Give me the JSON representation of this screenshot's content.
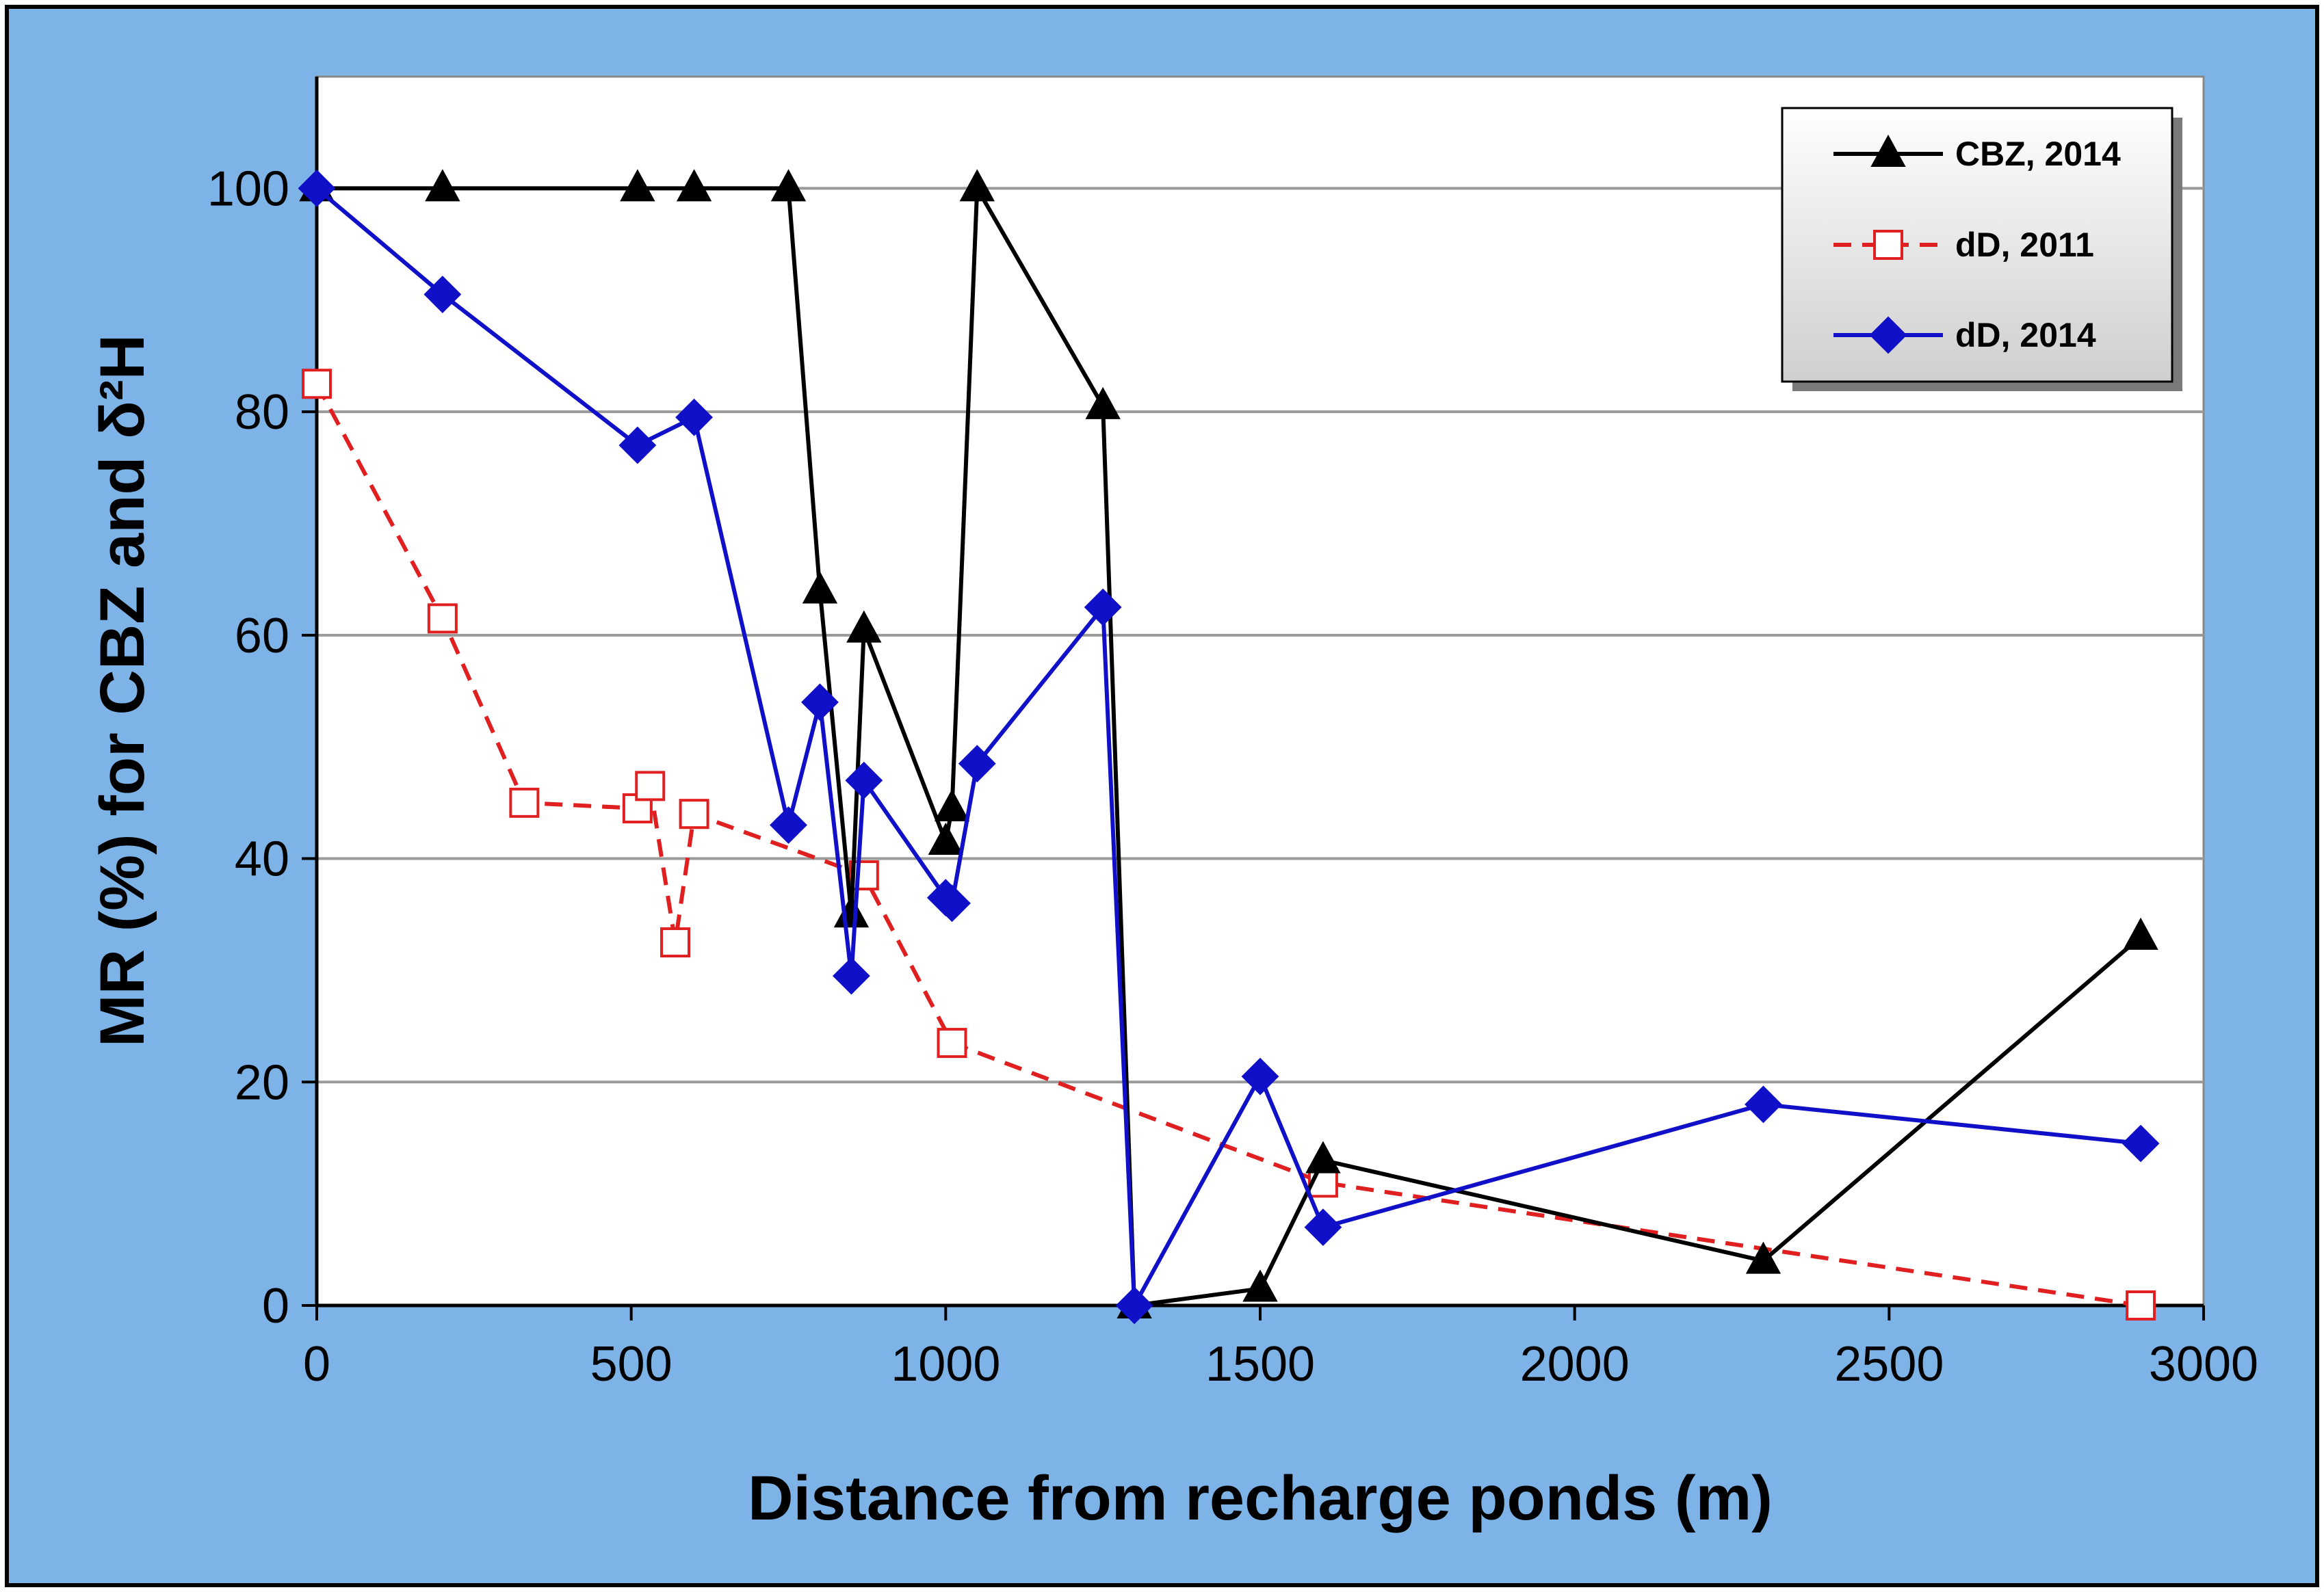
{
  "chart_data": {
    "type": "line",
    "title": "",
    "xlabel": "Distance from recharge ponds (m)",
    "ylabel": "MR (%) for CBZ and δ²H",
    "xlim": [
      0,
      3000
    ],
    "ylim": [
      0,
      110
    ],
    "xticks": [
      0,
      500,
      1000,
      1500,
      2000,
      2500,
      3000
    ],
    "yticks": [
      0,
      20,
      40,
      60,
      80,
      100
    ],
    "grid": "horizontal",
    "legend_position": "top-right",
    "series": [
      {
        "name": "CBZ, 2014",
        "color": "#000000",
        "line_style": "solid",
        "marker": "filled-triangle",
        "points": [
          [
            0,
            100
          ],
          [
            200,
            100
          ],
          [
            510,
            100
          ],
          [
            600,
            100
          ],
          [
            750,
            100
          ],
          [
            800,
            64
          ],
          [
            850,
            35
          ],
          [
            870,
            60.5
          ],
          [
            1000,
            41.5
          ],
          [
            1010,
            44.5
          ],
          [
            1050,
            100
          ],
          [
            1250,
            80.5
          ],
          [
            1300,
            0
          ],
          [
            1500,
            1.5
          ],
          [
            1600,
            13
          ],
          [
            2300,
            4
          ],
          [
            2900,
            33
          ]
        ]
      },
      {
        "name": "dD, 2011",
        "color": "#e02020",
        "line_style": "dashed",
        "marker": "open-square",
        "points": [
          [
            0,
            82.5
          ],
          [
            200,
            61.5
          ],
          [
            330,
            45
          ],
          [
            510,
            44.5
          ],
          [
            530,
            46.5
          ],
          [
            570,
            32.5
          ],
          [
            600,
            44
          ],
          [
            870,
            38.5
          ],
          [
            1010,
            23.5
          ],
          [
            1600,
            11
          ],
          [
            2900,
            0
          ]
        ]
      },
      {
        "name": "dD, 2014",
        "color": "#1010c8",
        "line_style": "solid",
        "marker": "filled-diamond",
        "points": [
          [
            0,
            100
          ],
          [
            200,
            90.5
          ],
          [
            510,
            77
          ],
          [
            600,
            79.5
          ],
          [
            750,
            43
          ],
          [
            800,
            54
          ],
          [
            850,
            29.5
          ],
          [
            870,
            47
          ],
          [
            1000,
            36.5
          ],
          [
            1010,
            36
          ],
          [
            1050,
            48.5
          ],
          [
            1250,
            62.5
          ],
          [
            1300,
            0
          ],
          [
            1500,
            20.5
          ],
          [
            1600,
            7
          ],
          [
            2300,
            18
          ],
          [
            2900,
            14.5
          ]
        ]
      }
    ]
  },
  "colors": {
    "frame_background": "#7db3e6",
    "plot_background": "#ffffff",
    "gridline": "#9a9a9a",
    "legend_background": "#e2e2e2"
  }
}
